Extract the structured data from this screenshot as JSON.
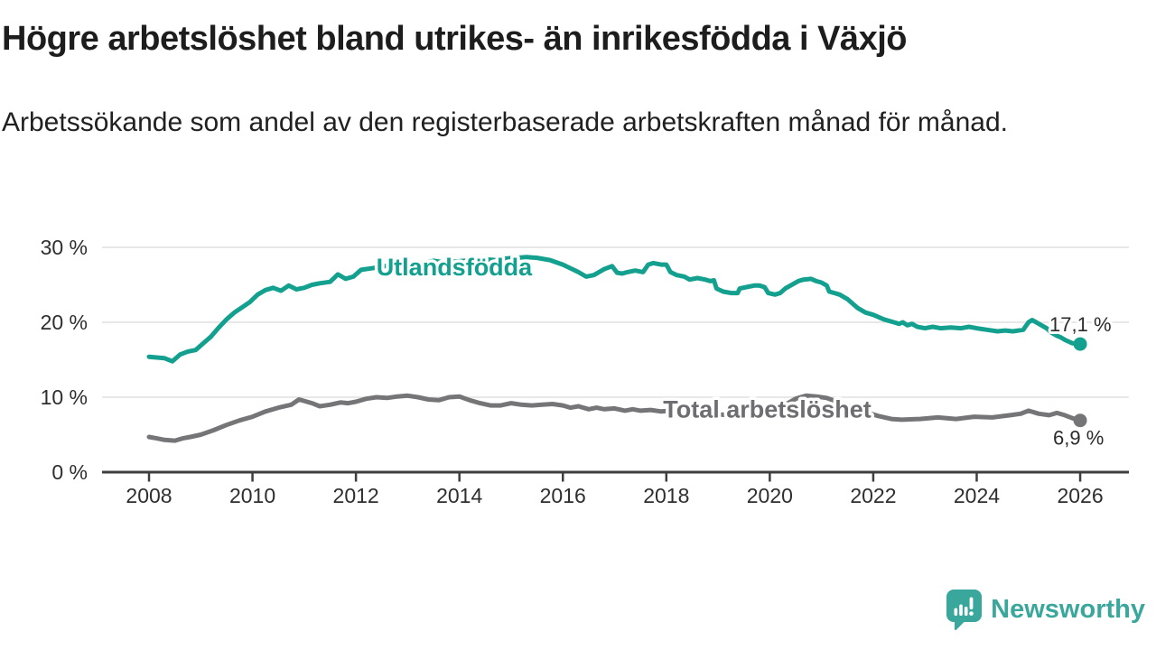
{
  "header": {
    "title": "Högre arbetslöshet bland utrikes- än inrikesfödda i Växjö",
    "subtitle": "Arbetssökande som andel av den registerbaserade arbetskraften månad för månad."
  },
  "chart_data": {
    "type": "line",
    "title": "",
    "xlabel": "",
    "ylabel": "",
    "grid": true,
    "xlim": [
      2008,
      2026
    ],
    "ylim": [
      0,
      31
    ],
    "x_ticks": [
      2008,
      2010,
      2012,
      2014,
      2016,
      2018,
      2020,
      2022,
      2024,
      2026
    ],
    "y_ticks": [
      {
        "v": 0,
        "label": "0 %"
      },
      {
        "v": 10,
        "label": "10 %"
      },
      {
        "v": 20,
        "label": "20 %"
      },
      {
        "v": 30,
        "label": "30 %"
      }
    ],
    "axis_color": "#3e3e3e",
    "grid_color": "#e1e1e1",
    "series": [
      {
        "name": "Utlandsfödda",
        "color": "#13a08f",
        "label": {
          "text": "Utlandsfödda",
          "x": 2013.9,
          "y": 27.4
        },
        "end_label": "17,1 %",
        "end_label_position": "above",
        "points": [
          [
            2008.0,
            15.4
          ],
          [
            2008.15,
            15.3
          ],
          [
            2008.3,
            15.2
          ],
          [
            2008.45,
            14.8
          ],
          [
            2008.6,
            15.7
          ],
          [
            2008.75,
            16.1
          ],
          [
            2008.9,
            16.3
          ],
          [
            2009.05,
            17.2
          ],
          [
            2009.2,
            18.1
          ],
          [
            2009.35,
            19.3
          ],
          [
            2009.5,
            20.4
          ],
          [
            2009.65,
            21.3
          ],
          [
            2009.8,
            22.0
          ],
          [
            2009.95,
            22.7
          ],
          [
            2010.1,
            23.7
          ],
          [
            2010.25,
            24.3
          ],
          [
            2010.4,
            24.6
          ],
          [
            2010.55,
            24.2
          ],
          [
            2010.7,
            24.9
          ],
          [
            2010.85,
            24.4
          ],
          [
            2011.0,
            24.6
          ],
          [
            2011.15,
            25.0
          ],
          [
            2011.3,
            25.2
          ],
          [
            2011.5,
            25.4
          ],
          [
            2011.65,
            26.4
          ],
          [
            2011.8,
            25.8
          ],
          [
            2011.95,
            26.1
          ],
          [
            2012.1,
            27.0
          ],
          [
            2012.3,
            27.2
          ],
          [
            2012.5,
            27.4
          ],
          [
            2012.7,
            27.7
          ],
          [
            2012.9,
            27.9
          ],
          [
            2013.1,
            27.6
          ],
          [
            2013.3,
            27.9
          ],
          [
            2013.5,
            28.2
          ],
          [
            2013.7,
            28.0
          ],
          [
            2013.9,
            28.1
          ],
          [
            2014.1,
            28.2
          ],
          [
            2014.3,
            28.3
          ],
          [
            2014.5,
            28.4
          ],
          [
            2014.7,
            28.3
          ],
          [
            2014.9,
            28.5
          ],
          [
            2015.1,
            28.6
          ],
          [
            2015.3,
            28.7
          ],
          [
            2015.5,
            28.6
          ],
          [
            2015.75,
            28.3
          ],
          [
            2016.0,
            27.7
          ],
          [
            2016.3,
            26.7
          ],
          [
            2016.45,
            26.1
          ],
          [
            2016.6,
            26.3
          ],
          [
            2016.8,
            27.1
          ],
          [
            2016.95,
            27.5
          ],
          [
            2017.05,
            26.6
          ],
          [
            2017.15,
            26.5
          ],
          [
            2017.25,
            26.7
          ],
          [
            2017.4,
            26.9
          ],
          [
            2017.55,
            26.7
          ],
          [
            2017.65,
            27.7
          ],
          [
            2017.75,
            27.9
          ],
          [
            2017.9,
            27.7
          ],
          [
            2018.0,
            27.7
          ],
          [
            2018.08,
            26.7
          ],
          [
            2018.2,
            26.3
          ],
          [
            2018.35,
            26.1
          ],
          [
            2018.45,
            25.7
          ],
          [
            2018.6,
            25.9
          ],
          [
            2018.75,
            25.7
          ],
          [
            2018.85,
            25.5
          ],
          [
            2018.92,
            25.6
          ],
          [
            2018.97,
            24.5
          ],
          [
            2019.1,
            24.1
          ],
          [
            2019.25,
            23.9
          ],
          [
            2019.38,
            23.9
          ],
          [
            2019.42,
            24.5
          ],
          [
            2019.55,
            24.7
          ],
          [
            2019.7,
            24.9
          ],
          [
            2019.8,
            24.9
          ],
          [
            2019.9,
            24.7
          ],
          [
            2019.97,
            23.9
          ],
          [
            2020.1,
            23.7
          ],
          [
            2020.2,
            23.9
          ],
          [
            2020.3,
            24.5
          ],
          [
            2020.45,
            25.1
          ],
          [
            2020.55,
            25.5
          ],
          [
            2020.65,
            25.7
          ],
          [
            2020.8,
            25.8
          ],
          [
            2020.9,
            25.5
          ],
          [
            2021.0,
            25.3
          ],
          [
            2021.1,
            24.9
          ],
          [
            2021.15,
            24.1
          ],
          [
            2021.25,
            23.9
          ],
          [
            2021.35,
            23.7
          ],
          [
            2021.5,
            23.1
          ],
          [
            2021.6,
            22.5
          ],
          [
            2021.7,
            21.9
          ],
          [
            2021.85,
            21.3
          ],
          [
            2022.0,
            21.0
          ],
          [
            2022.2,
            20.4
          ],
          [
            2022.4,
            20.0
          ],
          [
            2022.5,
            19.8
          ],
          [
            2022.57,
            20.0
          ],
          [
            2022.66,
            19.6
          ],
          [
            2022.75,
            19.8
          ],
          [
            2022.85,
            19.4
          ],
          [
            2023.0,
            19.2
          ],
          [
            2023.15,
            19.4
          ],
          [
            2023.3,
            19.2
          ],
          [
            2023.5,
            19.3
          ],
          [
            2023.7,
            19.2
          ],
          [
            2023.85,
            19.4
          ],
          [
            2024.0,
            19.2
          ],
          [
            2024.2,
            19.0
          ],
          [
            2024.4,
            18.8
          ],
          [
            2024.55,
            18.9
          ],
          [
            2024.7,
            18.8
          ],
          [
            2024.9,
            19.0
          ],
          [
            2025.0,
            20.0
          ],
          [
            2025.07,
            20.3
          ],
          [
            2025.15,
            20.0
          ],
          [
            2025.25,
            19.6
          ],
          [
            2025.35,
            19.2
          ],
          [
            2025.45,
            18.6
          ],
          [
            2025.55,
            18.2
          ],
          [
            2025.62,
            18.0
          ],
          [
            2025.72,
            17.6
          ],
          [
            2025.85,
            17.2
          ],
          [
            2026.0,
            17.1
          ]
        ]
      },
      {
        "name": "Total arbetslöshet",
        "color": "#757578",
        "label_color": "#6d6d72",
        "label": {
          "text": "Total arbetslöshet",
          "x": 2019.95,
          "y": 8.4
        },
        "end_label": "6,9 %",
        "end_label_position": "below",
        "points": [
          [
            2008.0,
            4.7
          ],
          [
            2008.15,
            4.5
          ],
          [
            2008.3,
            4.3
          ],
          [
            2008.5,
            4.2
          ],
          [
            2008.65,
            4.5
          ],
          [
            2008.8,
            4.7
          ],
          [
            2009.0,
            5.0
          ],
          [
            2009.25,
            5.6
          ],
          [
            2009.5,
            6.3
          ],
          [
            2009.75,
            6.9
          ],
          [
            2010.0,
            7.4
          ],
          [
            2010.25,
            8.1
          ],
          [
            2010.5,
            8.6
          ],
          [
            2010.75,
            9.0
          ],
          [
            2010.9,
            9.7
          ],
          [
            2011.0,
            9.5
          ],
          [
            2011.15,
            9.2
          ],
          [
            2011.3,
            8.8
          ],
          [
            2011.5,
            9.0
          ],
          [
            2011.7,
            9.3
          ],
          [
            2011.85,
            9.2
          ],
          [
            2012.0,
            9.4
          ],
          [
            2012.2,
            9.8
          ],
          [
            2012.4,
            10.0
          ],
          [
            2012.6,
            9.9
          ],
          [
            2012.8,
            10.1
          ],
          [
            2013.0,
            10.2
          ],
          [
            2013.2,
            10.0
          ],
          [
            2013.4,
            9.7
          ],
          [
            2013.6,
            9.6
          ],
          [
            2013.8,
            10.0
          ],
          [
            2014.0,
            10.1
          ],
          [
            2014.2,
            9.6
          ],
          [
            2014.4,
            9.2
          ],
          [
            2014.6,
            8.9
          ],
          [
            2014.8,
            8.9
          ],
          [
            2015.0,
            9.2
          ],
          [
            2015.2,
            9.0
          ],
          [
            2015.4,
            8.9
          ],
          [
            2015.6,
            9.0
          ],
          [
            2015.8,
            9.1
          ],
          [
            2016.0,
            8.9
          ],
          [
            2016.15,
            8.6
          ],
          [
            2016.3,
            8.8
          ],
          [
            2016.5,
            8.4
          ],
          [
            2016.65,
            8.6
          ],
          [
            2016.8,
            8.4
          ],
          [
            2017.0,
            8.5
          ],
          [
            2017.2,
            8.2
          ],
          [
            2017.35,
            8.4
          ],
          [
            2017.5,
            8.2
          ],
          [
            2017.7,
            8.3
          ],
          [
            2017.9,
            8.1
          ],
          [
            2018.1,
            8.2
          ],
          [
            2018.4,
            8.0
          ],
          [
            2018.7,
            7.8
          ],
          [
            2019.0,
            7.7
          ],
          [
            2019.3,
            7.6
          ],
          [
            2019.6,
            7.5
          ],
          [
            2019.9,
            7.7
          ],
          [
            2020.1,
            8.0
          ],
          [
            2020.3,
            9.0
          ],
          [
            2020.5,
            9.8
          ],
          [
            2020.7,
            10.2
          ],
          [
            2020.9,
            10.1
          ],
          [
            2021.1,
            9.9
          ],
          [
            2021.3,
            9.4
          ],
          [
            2021.5,
            8.9
          ],
          [
            2021.7,
            8.4
          ],
          [
            2021.9,
            7.9
          ],
          [
            2022.1,
            7.5
          ],
          [
            2022.35,
            7.1
          ],
          [
            2022.55,
            7.0
          ],
          [
            2022.9,
            7.1
          ],
          [
            2023.25,
            7.3
          ],
          [
            2023.6,
            7.1
          ],
          [
            2023.95,
            7.4
          ],
          [
            2024.3,
            7.3
          ],
          [
            2024.65,
            7.6
          ],
          [
            2024.85,
            7.8
          ],
          [
            2025.0,
            8.2
          ],
          [
            2025.2,
            7.8
          ],
          [
            2025.4,
            7.6
          ],
          [
            2025.55,
            7.9
          ],
          [
            2025.7,
            7.6
          ],
          [
            2025.85,
            7.2
          ],
          [
            2026.0,
            6.9
          ]
        ]
      }
    ]
  },
  "footer": {
    "brand": "Newsworthy",
    "brand_color": "#3aa79c",
    "logo_icon": "speech-bubble-bar-chart"
  }
}
